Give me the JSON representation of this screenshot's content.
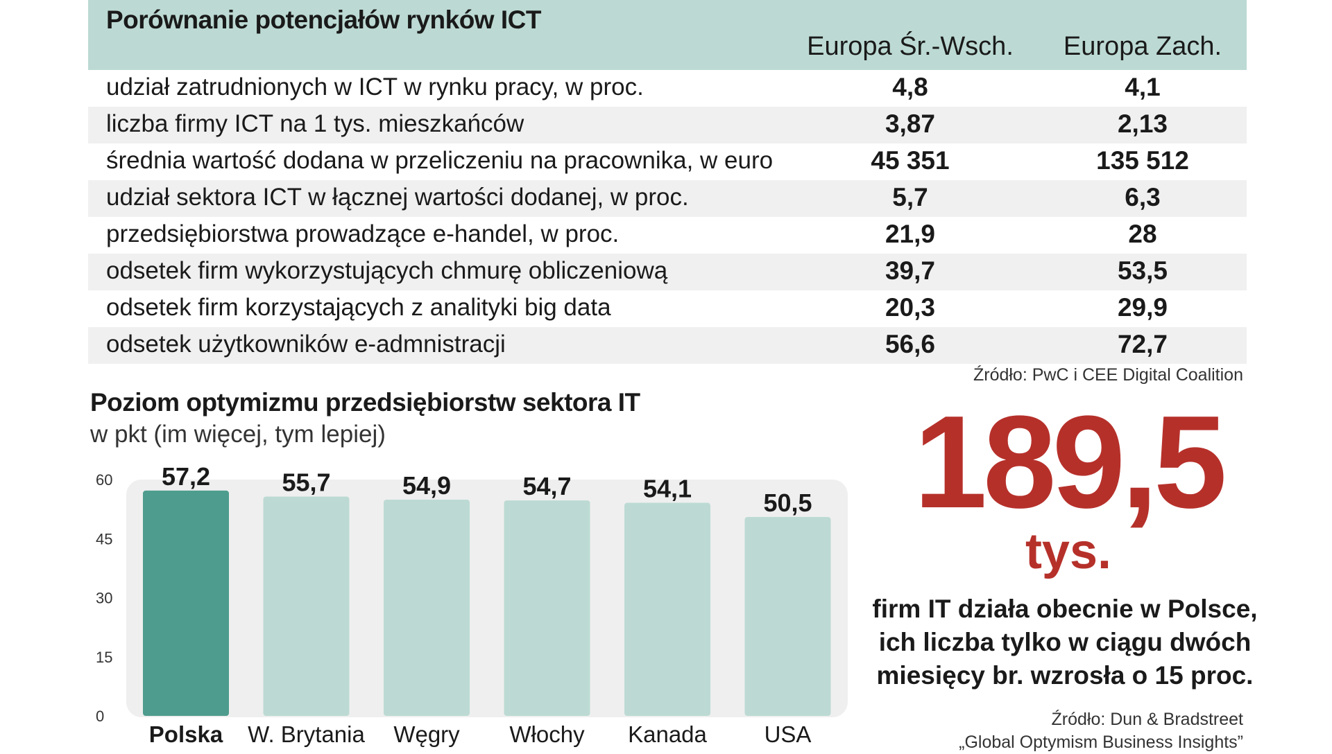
{
  "table": {
    "title": "Porównanie potencjałów rynków ICT",
    "columns": [
      "Europa Śr.-Wsch.",
      "Europa Zach."
    ],
    "rows": [
      {
        "label": "udział zatrudnionych w ICT w rynku pracy, w proc.",
        "v1": "4,8",
        "v2": "4,1"
      },
      {
        "label": "liczba firmy ICT na 1 tys. mieszkańców",
        "v1": "3,87",
        "v2": "2,13"
      },
      {
        "label": "średnia wartość dodana w przeliczeniu na pracownika, w euro",
        "v1": "45 351",
        "v2": "135 512"
      },
      {
        "label": "udział sektora ICT w łącznej wartości dodanej, w proc.",
        "v1": "5,7",
        "v2": "6,3"
      },
      {
        "label": "przedsiębiorstwa prowadzące e-handel, w proc.",
        "v1": "21,9",
        "v2": "28"
      },
      {
        "label": "odsetek firm wykorzystujących chmurę obliczeniową",
        "v1": "39,7",
        "v2": "53,5"
      },
      {
        "label": "odsetek firm korzystających z analityki big data",
        "v1": "20,3",
        "v2": "29,9"
      },
      {
        "label": "odsetek użytkowników e-admnistracji",
        "v1": "56,6",
        "v2": "72,7"
      }
    ],
    "source": "Źródło: PwC i CEE Digital Coalition"
  },
  "chart_data": {
    "type": "bar",
    "title": "Poziom optymizmu przedsiębiorstw sektora IT",
    "subtitle": "w pkt (im więcej, tym lepiej)",
    "categories": [
      "Polska",
      "W. Brytania",
      "Węgry",
      "Włochy",
      "Kanada",
      "USA"
    ],
    "values": [
      57.2,
      55.7,
      54.9,
      54.7,
      54.1,
      50.5
    ],
    "value_labels": [
      "57,2",
      "55,7",
      "54,9",
      "54,7",
      "54,1",
      "50,5"
    ],
    "highlight": "Polska",
    "ylim": [
      0,
      60
    ],
    "yticks": [
      0,
      15,
      30,
      45,
      60
    ],
    "xlabel": "",
    "ylabel": "",
    "colors": {
      "highlight": "#4e9c8d",
      "bar": "#bcdad3",
      "panel": "#efefef"
    }
  },
  "highlight_stat": {
    "value": "189,5",
    "unit": "tys.",
    "description": "firm IT działa obecnie w Polsce, ich liczba tylko w ciągu dwóch miesięcy br. wzrosła o 15 proc.",
    "source_line1": "Źródło: Dun & Bradstreet",
    "source_line2": "„Global Optymism Business Insights”"
  },
  "colors": {
    "header_bg": "#bcdad3",
    "row_shade": "#f0f0f0",
    "accent_red": "#b6302a"
  }
}
